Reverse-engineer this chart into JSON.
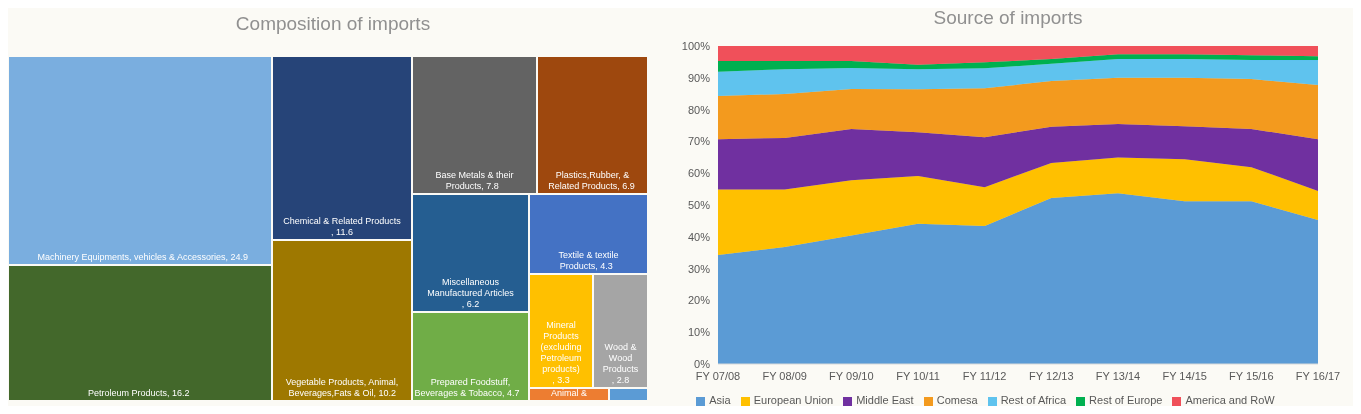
{
  "chart_data": [
    {
      "type": "other",
      "title": "Composition of imports",
      "categories": [
        "Machinery Equipments, vehicles & Accessories",
        "Petroleum Products",
        "Chemical & Related Products",
        "Vegetable Products, Animal, Beverages,Fats & Oil",
        "Base Metals & their Products",
        "Plastics,Rubber, & Related Products",
        "Miscellaneous Manufactured Articles",
        "Prepared Foodstuff, Beverages & Tobacco",
        "Textile & textile Products",
        "Mineral Products (excluding Petroleum products)",
        "Wood & Wood Products",
        "Animal &",
        null
      ],
      "value_labels": [
        ", 24.9",
        ", 16.2",
        ", 11.6",
        ", 10.2",
        ", 7.8",
        ", 6.9",
        ", 6.2",
        ", 4.7",
        ", 4.3",
        ", 3.3",
        ", 2.8",
        null,
        null
      ],
      "values": [
        24.9,
        16.2,
        11.6,
        10.2,
        7.8,
        6.9,
        6.2,
        4.7,
        4.3,
        3.3,
        2.8,
        null,
        null
      ],
      "colors": [
        "#7aaedf",
        "#43682b",
        "#264478",
        "#9e7800",
        "#636363",
        "#9e480e",
        "#255e91",
        "#70ad47",
        "#4472c4",
        "#ffc000",
        "#a5a5a5",
        "#ed7d31",
        "#5b9bd5"
      ]
    },
    {
      "type": "area",
      "title": "Source of imports",
      "stacked": true,
      "legend": "bottom",
      "categories": [
        "FY 07/08",
        "FY 08/09",
        "FY 09/10",
        "FY 10/11",
        "FY 11/12",
        "FY 12/13",
        "FY 13/14",
        "FY 14/15",
        "FY 15/16",
        "FY 16/17"
      ],
      "ylim": [
        0,
        100
      ],
      "yticks": [
        {
          "value": 0,
          "label": "0%"
        },
        {
          "value": 10,
          "label": "10%"
        },
        {
          "value": 20,
          "label": "20%"
        },
        {
          "value": 30,
          "label": "30%"
        },
        {
          "value": 40,
          "label": "40%"
        },
        {
          "value": 50,
          "label": "50%"
        },
        {
          "value": 60,
          "label": "60%"
        },
        {
          "value": 70,
          "label": "70%"
        },
        {
          "value": 80,
          "label": "80%"
        },
        {
          "value": 90,
          "label": "90%"
        },
        {
          "value": 100,
          "label": "100%"
        }
      ],
      "series": [
        {
          "name": "Asia",
          "color": "#5b9bd5",
          "values": [
            34.3,
            36.8,
            40.4,
            44.1,
            43.4,
            52.2,
            53.7,
            51.2,
            51.2,
            45.3
          ]
        },
        {
          "name": "European Union",
          "color": "#ffc000",
          "values": [
            20.6,
            18.1,
            17.4,
            15.0,
            12.2,
            11.0,
            11.2,
            13.2,
            10.7,
            9.1
          ]
        },
        {
          "name": "Middle East",
          "color": "#7030a0",
          "values": [
            15.8,
            16.2,
            16.1,
            13.8,
            15.7,
            11.4,
            10.6,
            10.4,
            12.0,
            16.3
          ]
        },
        {
          "name": "Comesa",
          "color": "#f39a1e",
          "values": [
            13.6,
            13.8,
            12.6,
            13.5,
            15.4,
            14.4,
            14.5,
            15.2,
            15.7,
            17.0
          ]
        },
        {
          "name": "Rest of Africa",
          "color": "#5fc3ee",
          "values": [
            7.6,
            7.8,
            6.6,
            6.3,
            6.3,
            5.4,
            5.9,
            5.9,
            6.0,
            7.9
          ]
        },
        {
          "name": "Rest of Europe",
          "color": "#00b050",
          "values": [
            3.4,
            2.6,
            2.2,
            1.4,
            1.9,
            1.5,
            1.5,
            1.5,
            1.5,
            1.2
          ]
        },
        {
          "name": "America and RoW",
          "color": "#f0505a",
          "values": [
            4.7,
            4.7,
            4.7,
            5.9,
            5.1,
            4.1,
            2.6,
            2.6,
            2.9,
            3.2
          ]
        }
      ]
    }
  ]
}
